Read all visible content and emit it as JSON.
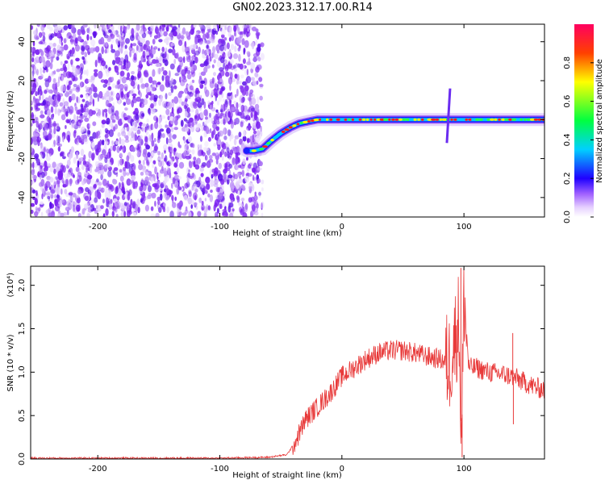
{
  "title": "GN02.2023.312.17.00.R14",
  "chart_data": [
    {
      "type": "heatmap",
      "panel": "top",
      "xlabel": "Height of straight line (km)",
      "ylabel": "Frequency (Hz)",
      "xlim": [
        -255,
        166
      ],
      "ylim": [
        -50,
        49
      ],
      "xticks": [
        -200,
        -100,
        0,
        100
      ],
      "yticks": [
        -40,
        -20,
        0,
        20,
        40
      ],
      "noise_region": {
        "x": [
          -255,
          -65
        ],
        "y": [
          -50,
          49
        ]
      },
      "ridge": {
        "x": [
          -78,
          -72,
          -65,
          -58,
          -50,
          -42,
          -35,
          -28,
          -20,
          -10,
          0,
          20,
          40,
          60,
          80,
          90,
          100,
          120,
          140,
          160,
          166
        ],
        "y": [
          -16,
          -16,
          -15,
          -11,
          -7,
          -4,
          -2,
          -1,
          0,
          0,
          0,
          0,
          0,
          0,
          0,
          0,
          0,
          0,
          0,
          0,
          0
        ]
      },
      "spike": {
        "x": 86,
        "ylim": [
          -12,
          16
        ]
      },
      "colorbar": {
        "label": "Normalized spectral amplitude",
        "range": [
          0,
          1
        ],
        "ticks": [
          "0.0",
          "0.2",
          "0.4",
          "0.6",
          "0.8"
        ]
      },
      "grid": false
    },
    {
      "type": "line",
      "panel": "bottom",
      "xlabel": "Height of straight line (km)",
      "ylabel": "SNR (10 * v/v)",
      "multiplier": "(x10⁴)",
      "xlim": [
        -255,
        166
      ],
      "ylim": [
        0,
        2.22
      ],
      "xticks": [
        -200,
        -100,
        0,
        100
      ],
      "yticks": [
        "0.0",
        "0.5",
        "1.0",
        "1.5",
        "2.0"
      ],
      "series": [
        {
          "color": "#e83a3a",
          "x": [
            -255,
            -200,
            -150,
            -100,
            -60,
            -45,
            -38,
            -30,
            -20,
            -10,
            0,
            10,
            20,
            30,
            40,
            50,
            60,
            70,
            80,
            88,
            92,
            96,
            98,
            100,
            104,
            110,
            120,
            130,
            140,
            150,
            160,
            166
          ],
          "y": [
            0.01,
            0.01,
            0.01,
            0.01,
            0.02,
            0.05,
            0.2,
            0.45,
            0.6,
            0.75,
            0.95,
            1.05,
            1.15,
            1.22,
            1.25,
            1.25,
            1.22,
            1.18,
            1.15,
            1.1,
            1.35,
            1.6,
            0.05,
            1.9,
            1.05,
            1.05,
            1.0,
            0.98,
            0.95,
            0.88,
            0.82,
            0.8
          ]
        }
      ],
      "grid": false
    }
  ]
}
